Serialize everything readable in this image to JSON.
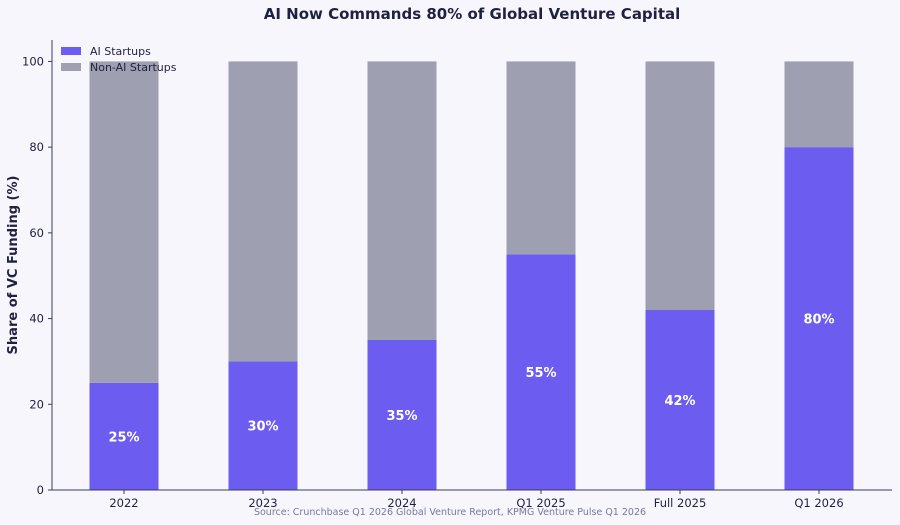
{
  "chart_data": {
    "type": "bar",
    "stacked": true,
    "title": "AI Now Commands 80% of Global Venture Capital",
    "xlabel": "",
    "ylabel": "Share of VC Funding (%)",
    "categories": [
      "2022",
      "2023",
      "2024",
      "Q1 2025",
      "Full 2025",
      "Q1 2026"
    ],
    "series": [
      {
        "name": "AI Startups",
        "values": [
          25,
          30,
          35,
          55,
          42,
          80
        ],
        "color": "#6c5cf0",
        "labels": [
          "25%",
          "30%",
          "35%",
          "55%",
          "42%",
          "80%"
        ]
      },
      {
        "name": "Non-AI Startups",
        "values": [
          75,
          70,
          65,
          45,
          58,
          20
        ],
        "color": "#9e9fb1"
      }
    ],
    "ylim": [
      0,
      105
    ],
    "yticks": [
      0,
      20,
      40,
      60,
      80,
      100
    ],
    "grid": false,
    "legend_position": "top-left",
    "source": "Source: Crunchbase Q1 2026 Global Venture Report, KPMG Venture Pulse Q1 2026"
  }
}
